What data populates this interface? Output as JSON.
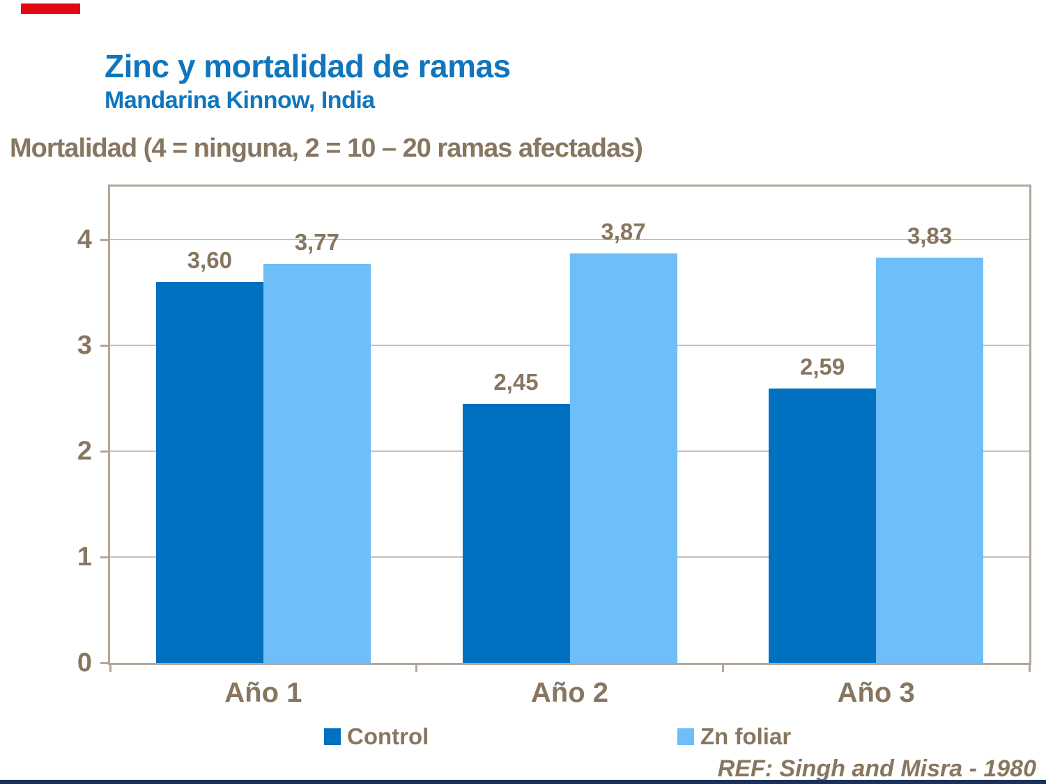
{
  "page": {
    "title": "Zinc y mortalidad de ramas",
    "subtitle": "Mandarina Kinnow, India",
    "axis_note": "Mortalidad (4 = ninguna, 2 = 10 – 20 ramas afectadas)",
    "reference": "REF: Singh and Misra - 1980"
  },
  "colors": {
    "title_blue": "#0F76BD",
    "brown_text": "#877660",
    "plot_border": "#B3A79A",
    "gridline": "#C9C0B4",
    "red_accent": "#E30613",
    "bottom_bar_navy": "#1B3159",
    "control_blue": "#0070C0",
    "zn_foliar_blue": "#6DBEF9"
  },
  "chart_data": {
    "type": "bar",
    "title": "Zinc y mortalidad de ramas",
    "subtitle": "Mandarina Kinnow, India",
    "ylabel": "Mortalidad (4 = ninguna, 2 = 10 – 20 ramas afectadas)",
    "xlabel": "",
    "categories": [
      "Año 1",
      "Año 2",
      "Año 3"
    ],
    "series": [
      {
        "name": "Control",
        "color": "#0070C0",
        "values": [
          3.6,
          2.45,
          2.59
        ],
        "value_labels": [
          "3,60",
          "2,45",
          "2,59"
        ]
      },
      {
        "name": "Zn foliar",
        "color": "#6DBEF9",
        "values": [
          3.77,
          3.87,
          3.83
        ],
        "value_labels": [
          "3,77",
          "3,87",
          "3,83"
        ]
      }
    ],
    "y_ticks": [
      0,
      1,
      2,
      3,
      4
    ],
    "ylim": [
      0,
      4.5
    ],
    "grid": true,
    "legend_position": "bottom",
    "annotation": "REF: Singh and Misra - 1980"
  }
}
